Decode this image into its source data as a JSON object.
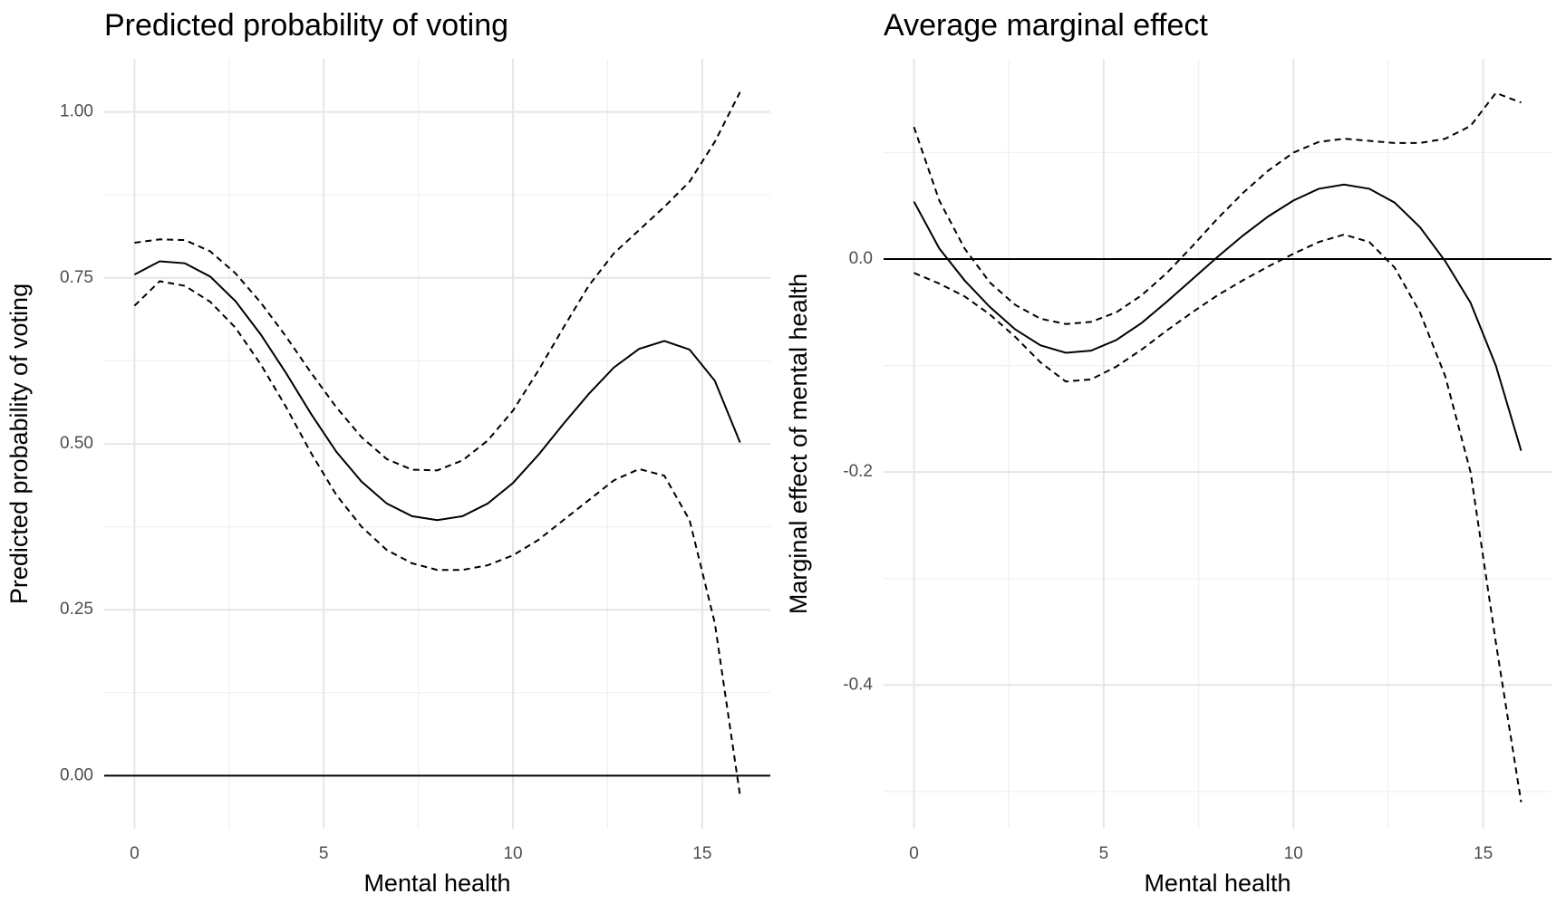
{
  "chart_data": [
    {
      "type": "line",
      "title": "Predicted probability of voting",
      "x_label": "Mental health",
      "y_label": "Predicted probability of voting",
      "x": [
        0,
        0.6667,
        1.3333,
        2,
        2.6667,
        3.3333,
        4,
        4.6667,
        5.3333,
        6,
        6.6667,
        7.3333,
        8,
        8.6667,
        9.3333,
        10,
        10.6667,
        11.3333,
        12,
        12.6667,
        13.3333,
        14,
        14.6667,
        15.3333,
        16
      ],
      "series": [
        {
          "color": "#000000",
          "dashed": false,
          "values": [
            0.755,
            0.775,
            0.772,
            0.752,
            0.715,
            0.665,
            0.607,
            0.545,
            0.488,
            0.443,
            0.41,
            0.391,
            0.385,
            0.391,
            0.41,
            0.441,
            0.483,
            0.53,
            0.575,
            0.615,
            0.643,
            0.655,
            0.642,
            0.595,
            0.502
          ]
        },
        {
          "color": "#000000",
          "dashed": true,
          "values": [
            0.803,
            0.808,
            0.807,
            0.79,
            0.757,
            0.713,
            0.662,
            0.607,
            0.555,
            0.51,
            0.477,
            0.461,
            0.46,
            0.475,
            0.505,
            0.55,
            0.61,
            0.675,
            0.738,
            0.787,
            0.822,
            0.857,
            0.895,
            0.955,
            1.03
          ]
        },
        {
          "color": "#000000",
          "dashed": true,
          "values": [
            0.708,
            0.745,
            0.738,
            0.714,
            0.675,
            0.62,
            0.556,
            0.486,
            0.423,
            0.375,
            0.34,
            0.32,
            0.31,
            0.31,
            0.317,
            0.332,
            0.355,
            0.385,
            0.415,
            0.445,
            0.462,
            0.452,
            0.385,
            0.23,
            -0.03
          ]
        }
      ],
      "xlim": [
        -0.8,
        16.8
      ],
      "xticks": [
        0,
        5,
        10,
        15
      ],
      "ylim": [
        -0.08,
        1.08
      ],
      "yticks": [
        {
          "value": 0,
          "label": "0.00"
        },
        {
          "value": 0.25,
          "label": "0.25"
        },
        {
          "value": 0.5,
          "label": "0.50"
        },
        {
          "value": 0.75,
          "label": "0.75"
        },
        {
          "value": 1,
          "label": "1.00"
        }
      ],
      "hline": 0,
      "grid": true
    },
    {
      "type": "line",
      "title": "Average marginal effect",
      "x_label": "Mental health",
      "y_label": "Marginal effect of mental health",
      "x": [
        0,
        0.6667,
        1.3333,
        2,
        2.6667,
        3.3333,
        4,
        4.6667,
        5.3333,
        6,
        6.6667,
        7.3333,
        8,
        8.6667,
        9.3333,
        10,
        10.6667,
        11.3333,
        12,
        12.6667,
        13.3333,
        14,
        14.6667,
        15.3333,
        16
      ],
      "series": [
        {
          "color": "#000000",
          "dashed": false,
          "values": [
            0.054,
            0.01,
            -0.02,
            -0.045,
            -0.066,
            -0.081,
            -0.088,
            -0.086,
            -0.076,
            -0.06,
            -0.04,
            -0.019,
            0.002,
            0.022,
            0.04,
            0.055,
            0.066,
            0.07,
            0.066,
            0.053,
            0.03,
            -0.002,
            -0.041,
            -0.1,
            -0.18
          ]
        },
        {
          "color": "#000000",
          "dashed": true,
          "values": [
            0.124,
            0.055,
            0.01,
            -0.022,
            -0.043,
            -0.056,
            -0.061,
            -0.059,
            -0.05,
            -0.034,
            -0.013,
            0.012,
            0.038,
            0.062,
            0.083,
            0.1,
            0.11,
            0.113,
            0.111,
            0.109,
            0.109,
            0.113,
            0.125,
            0.156,
            0.147
          ]
        },
        {
          "color": "#000000",
          "dashed": true,
          "values": [
            -0.013,
            -0.023,
            -0.035,
            -0.052,
            -0.073,
            -0.097,
            -0.115,
            -0.113,
            -0.101,
            -0.085,
            -0.067,
            -0.05,
            -0.034,
            -0.02,
            -0.007,
            0.005,
            0.016,
            0.023,
            0.016,
            -0.008,
            -0.05,
            -0.11,
            -0.2,
            -0.36,
            -0.51
          ]
        }
      ],
      "xlim": [
        -0.8,
        16.8
      ],
      "xticks": [
        0,
        5,
        10,
        15
      ],
      "ylim": [
        -0.535,
        0.188
      ],
      "yticks": [
        -0.4,
        -0.2,
        {
          "value": 0,
          "label": "0.0"
        }
      ],
      "hline": 0,
      "grid": true
    }
  ]
}
